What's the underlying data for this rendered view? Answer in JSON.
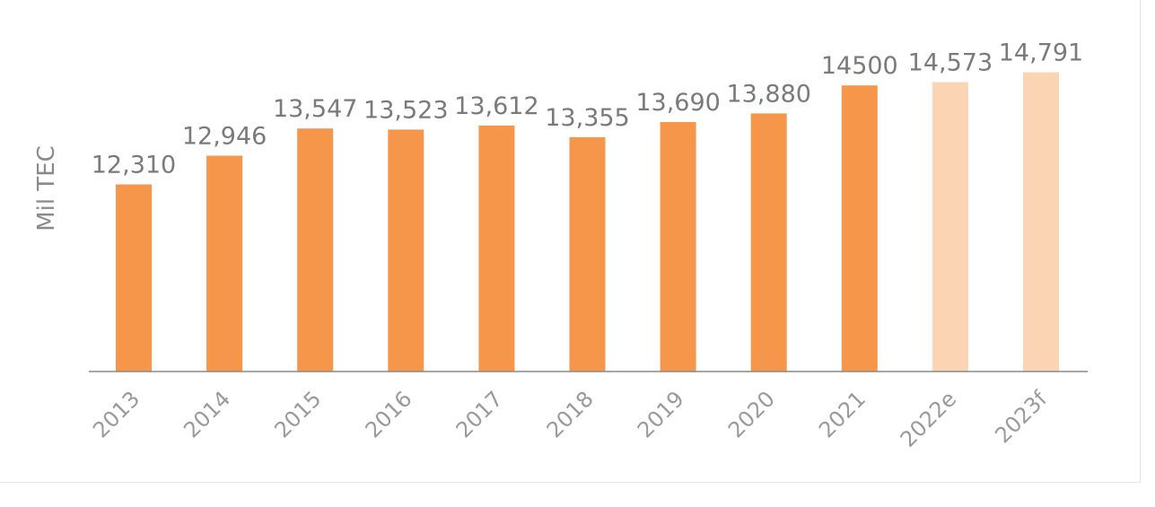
{
  "chart_data": {
    "type": "bar",
    "title": "",
    "xlabel": "",
    "ylabel": "Mil TEC",
    "categories": [
      "2013",
      "2014",
      "2015",
      "2016",
      "2017",
      "2018",
      "2019",
      "2020",
      "2021",
      "2022e",
      "2023f"
    ],
    "values": [
      12310,
      12946,
      13547,
      13523,
      13612,
      13355,
      13690,
      13880,
      14500,
      14573,
      14791
    ],
    "data_labels": [
      "12,310",
      "12,946",
      "13,547",
      "13,523",
      "13,612",
      "13,355",
      "13,690",
      "13,880",
      "14500",
      "14,573",
      "14,791"
    ],
    "estimated": [
      false,
      false,
      false,
      false,
      false,
      false,
      false,
      false,
      false,
      true,
      true
    ],
    "ylim": [
      8170,
      15000
    ],
    "grid": false,
    "colors": {
      "actual": "#f5964a",
      "estimate": "#fbd5b3",
      "axis": "#888888"
    }
  }
}
